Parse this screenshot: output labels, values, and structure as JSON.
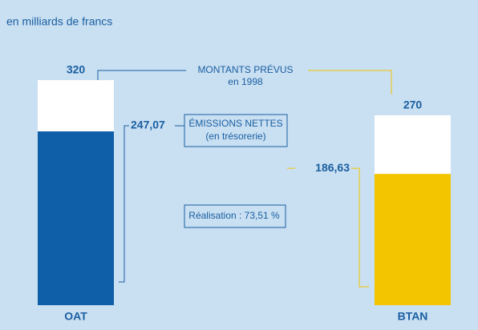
{
  "chart_data": {
    "type": "bar",
    "subtitle": "en milliards de francs",
    "categories": [
      "OAT",
      "BTAN"
    ],
    "ylim": [
      0,
      320
    ],
    "series": [
      {
        "name": "MONTANTS PRÉVUS",
        "note": "en 1998",
        "color": "#ffffff",
        "line_colors": [
          "#1a5fa0",
          "#f2c500"
        ],
        "values": [
          320,
          270
        ]
      },
      {
        "name": "ÉMISSIONS NETTES",
        "note": "(en trésorerie)",
        "colors": [
          "#0f5ea8",
          "#f2c500"
        ],
        "line_colors": [
          "#1a5fa0",
          "#f2c500"
        ],
        "values": [
          247.07,
          186.63
        ],
        "value_labels": [
          "247,07",
          "186,63"
        ]
      }
    ],
    "annotation": "Réalisation : 73,51 %"
  }
}
